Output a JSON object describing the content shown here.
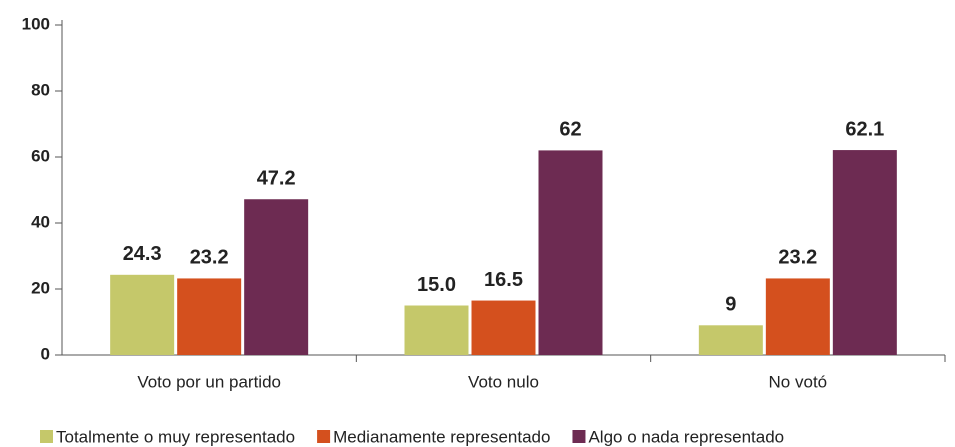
{
  "chart_data": {
    "type": "bar",
    "categories": [
      "Voto por un partido",
      "Voto nulo",
      "No votó"
    ],
    "series": [
      {
        "name": "Totalmente o muy representado",
        "color": "#c5c86a",
        "values": [
          24.3,
          15.0,
          9
        ],
        "value_labels": [
          "24.3",
          "15.0",
          "9"
        ]
      },
      {
        "name": "Medianamente representado",
        "color": "#d4501e",
        "values": [
          23.2,
          16.5,
          23.2
        ]
      },
      {
        "name": "Algo o nada representado",
        "color": "#6d2b52",
        "values": [
          47.2,
          62,
          62.1
        ]
      }
    ],
    "ylim": [
      0,
      100
    ],
    "yticks": [
      0,
      20,
      40,
      60,
      80,
      100
    ],
    "grid": false
  }
}
